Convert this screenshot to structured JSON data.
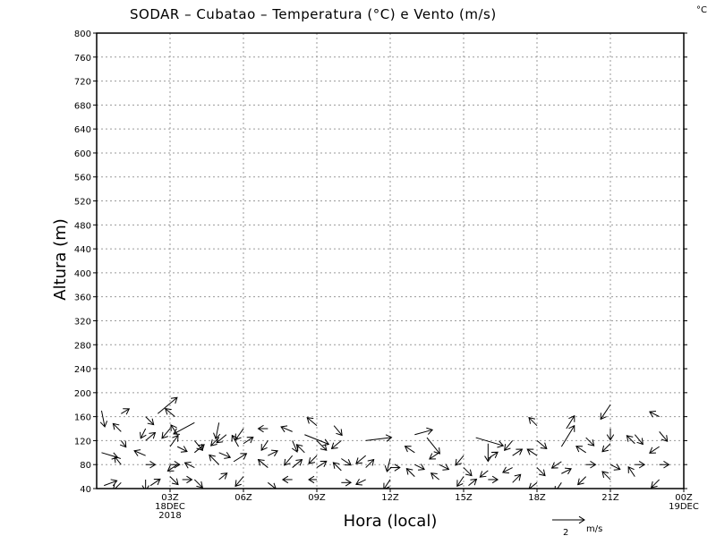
{
  "chart_data": {
    "type": "vector-field",
    "title": "SODAR – Cubatao – Temperatura (°C) e Vento (m/s)",
    "unit_label": "°C",
    "xlabel": "Hora (local)",
    "ylabel": "Altura (m)",
    "ylim": [
      40,
      800
    ],
    "yticks": [
      40,
      80,
      120,
      160,
      200,
      240,
      280,
      320,
      360,
      400,
      440,
      480,
      520,
      560,
      600,
      640,
      680,
      720,
      760,
      800
    ],
    "xlim": [
      0,
      24
    ],
    "xticks": [
      {
        "x": 3,
        "lines": [
          "03Z",
          "18DEC",
          "2018"
        ]
      },
      {
        "x": 6,
        "lines": [
          "06Z"
        ]
      },
      {
        "x": 9,
        "lines": [
          "09Z"
        ]
      },
      {
        "x": 12,
        "lines": [
          "12Z"
        ]
      },
      {
        "x": 15,
        "lines": [
          "15Z"
        ]
      },
      {
        "x": 18,
        "lines": [
          "18Z"
        ]
      },
      {
        "x": 21,
        "lines": [
          "21Z"
        ]
      },
      {
        "x": 24,
        "lines": [
          "00Z",
          "19DEC"
        ]
      }
    ],
    "grid": true,
    "reference_vector": {
      "magnitude": 2,
      "label": "m/s"
    },
    "vectors": [
      {
        "x": 0.2,
        "y": 170,
        "u": 0.2,
        "v": -1.0
      },
      {
        "x": 0.2,
        "y": 100,
        "u": 1.0,
        "v": -0.3
      },
      {
        "x": 0.3,
        "y": 45,
        "u": 0.8,
        "v": 0.3
      },
      {
        "x": 1.0,
        "y": 165,
        "u": 0.5,
        "v": 0.3
      },
      {
        "x": 1.0,
        "y": 135,
        "u": -0.5,
        "v": 0.5
      },
      {
        "x": 1.0,
        "y": 120,
        "u": 0.3,
        "v": -0.4
      },
      {
        "x": 1.0,
        "y": 80,
        "u": -0.4,
        "v": 0.5
      },
      {
        "x": 1.0,
        "y": 50,
        "u": -0.5,
        "v": -0.5
      },
      {
        "x": 2.0,
        "y": 160,
        "u": 0.5,
        "v": -0.5
      },
      {
        "x": 2.0,
        "y": 140,
        "u": -0.3,
        "v": -0.6
      },
      {
        "x": 2.0,
        "y": 120,
        "u": 0.6,
        "v": 0.5
      },
      {
        "x": 2.0,
        "y": 95,
        "u": -0.7,
        "v": 0.3
      },
      {
        "x": 2.0,
        "y": 80,
        "u": 0.6,
        "v": 0.0
      },
      {
        "x": 2.0,
        "y": 55,
        "u": 0.0,
        "v": -0.7
      },
      {
        "x": 2.2,
        "y": 45,
        "u": 0.6,
        "v": 0.4
      },
      {
        "x": 2.5,
        "y": 165,
        "u": 1.2,
        "v": 1.0
      },
      {
        "x": 3.0,
        "y": 140,
        "u": -0.5,
        "v": -0.6
      },
      {
        "x": 3.0,
        "y": 110,
        "u": 0.5,
        "v": 0.7
      },
      {
        "x": 3.0,
        "y": 80,
        "u": 0.6,
        "v": 0.0
      },
      {
        "x": 3.0,
        "y": 60,
        "u": 0.5,
        "v": -0.5
      },
      {
        "x": 3.2,
        "y": 160,
        "u": -0.6,
        "v": 0.5
      },
      {
        "x": 3.3,
        "y": 130,
        "u": -0.4,
        "v": 0.6
      },
      {
        "x": 3.3,
        "y": 110,
        "u": 0.6,
        "v": -0.3
      },
      {
        "x": 3.3,
        "y": 80,
        "u": -0.6,
        "v": -0.4
      },
      {
        "x": 3.5,
        "y": 55,
        "u": 0.6,
        "v": 0.0
      },
      {
        "x": 4.0,
        "y": 150,
        "u": -1.3,
        "v": -0.7
      },
      {
        "x": 4.0,
        "y": 120,
        "u": 0.5,
        "v": -0.6
      },
      {
        "x": 4.0,
        "y": 100,
        "u": 0.6,
        "v": 0.5
      },
      {
        "x": 4.0,
        "y": 75,
        "u": -0.6,
        "v": 0.3
      },
      {
        "x": 4.0,
        "y": 55,
        "u": 0.5,
        "v": -0.5
      },
      {
        "x": 5.0,
        "y": 150,
        "u": -0.2,
        "v": -1.0
      },
      {
        "x": 5.0,
        "y": 125,
        "u": -0.5,
        "v": -0.5
      },
      {
        "x": 5.0,
        "y": 100,
        "u": 0.7,
        "v": -0.3
      },
      {
        "x": 5.0,
        "y": 80,
        "u": -0.6,
        "v": 0.6
      },
      {
        "x": 5.0,
        "y": 55,
        "u": 0.5,
        "v": 0.4
      },
      {
        "x": 5.3,
        "y": 130,
        "u": -0.6,
        "v": -0.5
      },
      {
        "x": 5.6,
        "y": 85,
        "u": 0.8,
        "v": 0.5
      },
      {
        "x": 5.8,
        "y": 110,
        "u": -0.4,
        "v": 0.7
      },
      {
        "x": 6.0,
        "y": 140,
        "u": -0.5,
        "v": -0.7
      },
      {
        "x": 6.0,
        "y": 115,
        "u": 0.6,
        "v": 0.4
      },
      {
        "x": 6.0,
        "y": 60,
        "u": -0.5,
        "v": -0.6
      },
      {
        "x": 7.0,
        "y": 140,
        "u": -0.6,
        "v": 0.0
      },
      {
        "x": 7.0,
        "y": 120,
        "u": -0.4,
        "v": -0.6
      },
      {
        "x": 7.0,
        "y": 95,
        "u": 0.6,
        "v": 0.3
      },
      {
        "x": 7.0,
        "y": 75,
        "u": -0.6,
        "v": 0.5
      },
      {
        "x": 7.0,
        "y": 50,
        "u": 0.5,
        "v": -0.4
      },
      {
        "x": 8.0,
        "y": 135,
        "u": -0.7,
        "v": 0.3
      },
      {
        "x": 8.0,
        "y": 120,
        "u": 0.3,
        "v": -0.7
      },
      {
        "x": 8.0,
        "y": 95,
        "u": -0.5,
        "v": -0.6
      },
      {
        "x": 8.0,
        "y": 75,
        "u": 0.6,
        "v": 0.5
      },
      {
        "x": 8.0,
        "y": 55,
        "u": -0.6,
        "v": 0.0
      },
      {
        "x": 8.5,
        "y": 130,
        "u": 1.5,
        "v": -0.6
      },
      {
        "x": 8.5,
        "y": 100,
        "u": -0.5,
        "v": 0.5
      },
      {
        "x": 9.0,
        "y": 145,
        "u": -0.6,
        "v": 0.5
      },
      {
        "x": 9.0,
        "y": 120,
        "u": 0.6,
        "v": -0.6
      },
      {
        "x": 9.0,
        "y": 95,
        "u": -0.5,
        "v": -0.5
      },
      {
        "x": 9.0,
        "y": 75,
        "u": 0.6,
        "v": 0.4
      },
      {
        "x": 9.0,
        "y": 55,
        "u": -0.5,
        "v": 0.0
      },
      {
        "x": 9.7,
        "y": 145,
        "u": 0.5,
        "v": -0.6
      },
      {
        "x": 10.0,
        "y": 120,
        "u": -0.6,
        "v": -0.5
      },
      {
        "x": 10.0,
        "y": 90,
        "u": 0.6,
        "v": -0.4
      },
      {
        "x": 10.0,
        "y": 70,
        "u": -0.5,
        "v": 0.5
      },
      {
        "x": 10.0,
        "y": 50,
        "u": 0.6,
        "v": 0.0
      },
      {
        "x": 11.0,
        "y": 120,
        "u": 1.6,
        "v": 0.2
      },
      {
        "x": 11.0,
        "y": 95,
        "u": -0.6,
        "v": -0.5
      },
      {
        "x": 11.0,
        "y": 75,
        "u": 0.5,
        "v": 0.5
      },
      {
        "x": 11.0,
        "y": 55,
        "u": -0.6,
        "v": -0.3
      },
      {
        "x": 12.0,
        "y": 90,
        "u": -0.2,
        "v": -0.8
      },
      {
        "x": 12.0,
        "y": 75,
        "u": 0.6,
        "v": 0.0
      },
      {
        "x": 12.0,
        "y": 55,
        "u": -0.4,
        "v": -0.6
      },
      {
        "x": 13.0,
        "y": 130,
        "u": 1.1,
        "v": 0.3
      },
      {
        "x": 13.0,
        "y": 100,
        "u": -0.6,
        "v": 0.4
      },
      {
        "x": 13.0,
        "y": 80,
        "u": 0.6,
        "v": -0.3
      },
      {
        "x": 13.0,
        "y": 60,
        "u": -0.5,
        "v": 0.5
      },
      {
        "x": 13.5,
        "y": 125,
        "u": 0.8,
        "v": -1.0
      },
      {
        "x": 14.0,
        "y": 100,
        "u": -0.6,
        "v": -0.4
      },
      {
        "x": 14.0,
        "y": 80,
        "u": 0.6,
        "v": -0.3
      },
      {
        "x": 14.0,
        "y": 55,
        "u": -0.5,
        "v": 0.4
      },
      {
        "x": 15.0,
        "y": 95,
        "u": -0.5,
        "v": -0.6
      },
      {
        "x": 15.0,
        "y": 75,
        "u": 0.5,
        "v": -0.5
      },
      {
        "x": 15.0,
        "y": 60,
        "u": -0.4,
        "v": -0.6
      },
      {
        "x": 15.2,
        "y": 45,
        "u": 0.5,
        "v": 0.4
      },
      {
        "x": 15.5,
        "y": 125,
        "u": 1.7,
        "v": -0.5
      },
      {
        "x": 16.0,
        "y": 115,
        "u": 0.0,
        "v": -1.1
      },
      {
        "x": 16.0,
        "y": 90,
        "u": 0.6,
        "v": 0.4
      },
      {
        "x": 16.0,
        "y": 70,
        "u": -0.5,
        "v": -0.4
      },
      {
        "x": 16.0,
        "y": 55,
        "u": 0.6,
        "v": 0.0
      },
      {
        "x": 17.0,
        "y": 120,
        "u": -0.5,
        "v": -0.6
      },
      {
        "x": 17.0,
        "y": 95,
        "u": 0.6,
        "v": 0.4
      },
      {
        "x": 17.0,
        "y": 75,
        "u": -0.6,
        "v": -0.3
      },
      {
        "x": 17.0,
        "y": 50,
        "u": 0.5,
        "v": 0.5
      },
      {
        "x": 18.0,
        "y": 145,
        "u": -0.5,
        "v": 0.5
      },
      {
        "x": 18.0,
        "y": 120,
        "u": 0.6,
        "v": -0.5
      },
      {
        "x": 18.0,
        "y": 95,
        "u": -0.6,
        "v": 0.4
      },
      {
        "x": 18.0,
        "y": 75,
        "u": 0.5,
        "v": -0.5
      },
      {
        "x": 18.0,
        "y": 50,
        "u": -0.5,
        "v": -0.4
      },
      {
        "x": 19.0,
        "y": 110,
        "u": 0.8,
        "v": 1.3
      },
      {
        "x": 19.2,
        "y": 140,
        "u": 0.5,
        "v": 0.8
      },
      {
        "x": 19.0,
        "y": 85,
        "u": -0.6,
        "v": -0.4
      },
      {
        "x": 19.0,
        "y": 65,
        "u": 0.6,
        "v": 0.3
      },
      {
        "x": 19.0,
        "y": 50,
        "u": -0.4,
        "v": -0.6
      },
      {
        "x": 20.0,
        "y": 125,
        "u": 0.5,
        "v": -0.5
      },
      {
        "x": 20.0,
        "y": 100,
        "u": -0.6,
        "v": 0.4
      },
      {
        "x": 20.0,
        "y": 80,
        "u": 0.6,
        "v": 0.0
      },
      {
        "x": 20.0,
        "y": 60,
        "u": -0.5,
        "v": -0.5
      },
      {
        "x": 21.0,
        "y": 180,
        "u": -0.6,
        "v": -0.9
      },
      {
        "x": 21.0,
        "y": 140,
        "u": 0.0,
        "v": -0.7
      },
      {
        "x": 21.0,
        "y": 115,
        "u": -0.5,
        "v": -0.5
      },
      {
        "x": 21.0,
        "y": 80,
        "u": 0.6,
        "v": -0.3
      },
      {
        "x": 21.0,
        "y": 55,
        "u": -0.5,
        "v": 0.5
      },
      {
        "x": 22.0,
        "y": 130,
        "u": 0.5,
        "v": -0.6
      },
      {
        "x": 22.0,
        "y": 115,
        "u": -0.5,
        "v": 0.5
      },
      {
        "x": 22.0,
        "y": 80,
        "u": 0.6,
        "v": 0.0
      },
      {
        "x": 22.0,
        "y": 60,
        "u": -0.4,
        "v": 0.6
      },
      {
        "x": 23.0,
        "y": 160,
        "u": -0.6,
        "v": 0.3
      },
      {
        "x": 23.0,
        "y": 135,
        "u": 0.5,
        "v": -0.6
      },
      {
        "x": 23.0,
        "y": 110,
        "u": -0.6,
        "v": -0.4
      },
      {
        "x": 23.0,
        "y": 80,
        "u": 0.6,
        "v": 0.0
      },
      {
        "x": 23.0,
        "y": 55,
        "u": -0.5,
        "v": -0.5
      }
    ]
  }
}
